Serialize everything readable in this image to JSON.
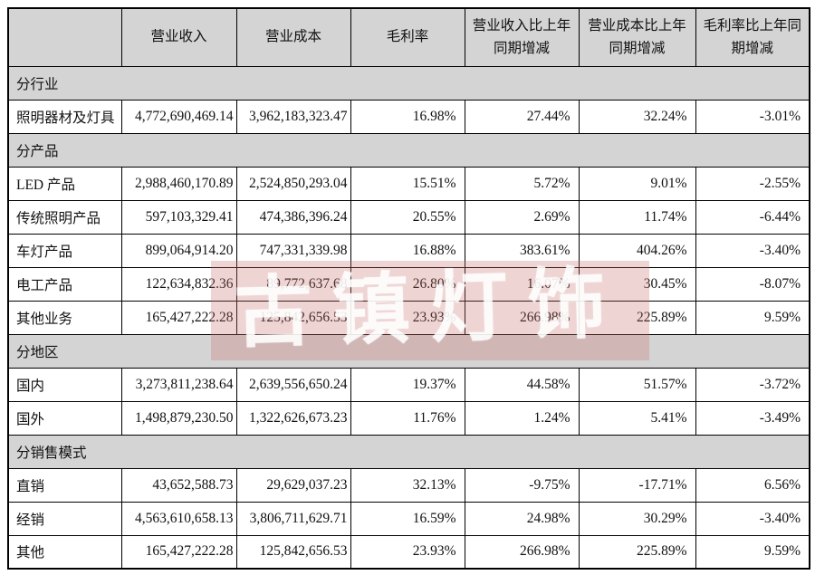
{
  "table": {
    "columns": [
      "",
      "营业收入",
      "营业成本",
      "毛利率",
      "营业收入比上年同期增减",
      "营业成本比上年同期增减",
      "毛利率比上年同期增减"
    ],
    "rows": [
      {
        "type": "section",
        "label": "分行业"
      },
      {
        "type": "data",
        "label": "照明器材及灯具",
        "values": [
          "4,772,690,469.14",
          "3,962,183,323.47",
          "16.98%",
          "27.44%",
          "32.24%",
          "-3.01%"
        ]
      },
      {
        "type": "section",
        "label": "分产品"
      },
      {
        "type": "data",
        "label": "LED 产品",
        "values": [
          "2,988,460,170.89",
          "2,524,850,293.04",
          "15.51%",
          "5.72%",
          "9.01%",
          "-2.55%"
        ]
      },
      {
        "type": "data",
        "label": "传统照明产品",
        "values": [
          "597,103,329.41",
          "474,386,396.24",
          "20.55%",
          "2.69%",
          "11.74%",
          "-6.44%"
        ]
      },
      {
        "type": "data",
        "label": "车灯产品",
        "values": [
          "899,064,914.20",
          "747,331,339.98",
          "16.88%",
          "383.61%",
          "404.26%",
          "-3.40%"
        ]
      },
      {
        "type": "data",
        "label": "电工产品",
        "values": [
          "122,634,832.36",
          "89,772,637.68",
          "26.80%",
          "16.07%",
          "30.45%",
          "-8.07%"
        ]
      },
      {
        "type": "data",
        "label": "其他业务",
        "values": [
          "165,427,222.28",
          "125,842,656.53",
          "23.93%",
          "266.98%",
          "225.89%",
          "9.59%"
        ]
      },
      {
        "type": "section",
        "label": "分地区"
      },
      {
        "type": "data",
        "label": "国内",
        "values": [
          "3,273,811,238.64",
          "2,639,556,650.24",
          "19.37%",
          "44.58%",
          "51.57%",
          "-3.72%"
        ]
      },
      {
        "type": "data",
        "label": "国外",
        "values": [
          "1,498,879,230.50",
          "1,322,626,673.23",
          "11.76%",
          "1.24%",
          "5.41%",
          "-3.49%"
        ]
      },
      {
        "type": "section",
        "label": "分销售模式"
      },
      {
        "type": "data",
        "label": "直销",
        "values": [
          "43,652,588.73",
          "29,629,037.23",
          "32.13%",
          "-9.75%",
          "-17.71%",
          "6.56%"
        ]
      },
      {
        "type": "data",
        "label": "经销",
        "values": [
          "4,563,610,658.13",
          "3,806,711,629.71",
          "16.59%",
          "24.98%",
          "30.29%",
          "-3.40%"
        ]
      },
      {
        "type": "data",
        "label": "其他",
        "values": [
          "165,427,222.28",
          "125,842,656.53",
          "23.93%",
          "266.98%",
          "225.89%",
          "9.59%"
        ]
      }
    ]
  },
  "watermark": {
    "text": "古镇灯饰",
    "overlay_color": "#c97171"
  },
  "colors": {
    "header_bg": "#d4d4d4",
    "section_bg": "#d4d4d4",
    "border": "#000000",
    "text": "#111111"
  }
}
